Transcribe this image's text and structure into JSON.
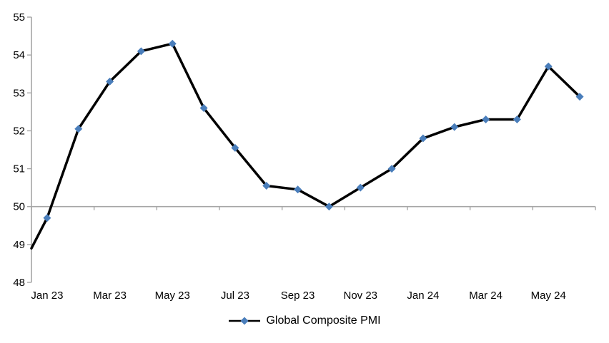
{
  "chart_data": {
    "type": "line",
    "title": "",
    "categories": [
      "Jan 23",
      "Feb 23",
      "Mar 23",
      "Apr 23",
      "May 23",
      "Jun 23",
      "Jul 23",
      "Aug 23",
      "Sep 23",
      "Oct 23",
      "Nov 23",
      "Dec 23",
      "Jan 24",
      "Feb 24",
      "Mar 24",
      "Apr 24",
      "May 24",
      "Jun 24"
    ],
    "series": [
      {
        "name": "Global Composite PMI",
        "values": [
          49.7,
          52.05,
          53.3,
          54.1,
          54.3,
          52.6,
          51.55,
          50.55,
          50.45,
          50.0,
          50.5,
          51.0,
          51.8,
          52.1,
          52.3,
          52.3,
          53.7,
          52.9
        ],
        "edge_start_value": 48.9,
        "line_color": "#000000",
        "line_width": 3.5,
        "marker": "diamond",
        "marker_color": "#4a7ebb",
        "marker_size": 5.5
      }
    ],
    "x_tick_labels": [
      "Jan 23",
      "Mar 23",
      "May 23",
      "Jul 23",
      "Sep 23",
      "Nov 23",
      "Jan 24",
      "Mar 24",
      "May 24"
    ],
    "x_tick_label_every": 2,
    "y_tick_labels": [
      55,
      54,
      53,
      52,
      51,
      50,
      49,
      48
    ],
    "ylim": [
      48,
      55
    ],
    "reference_line_y": 50,
    "grid": false,
    "legend": {
      "position": "bottom-center",
      "label": "Global Composite PMI"
    },
    "colors": {
      "axis": "#a6a6a6",
      "text": "#000000",
      "background": "#ffffff"
    }
  }
}
